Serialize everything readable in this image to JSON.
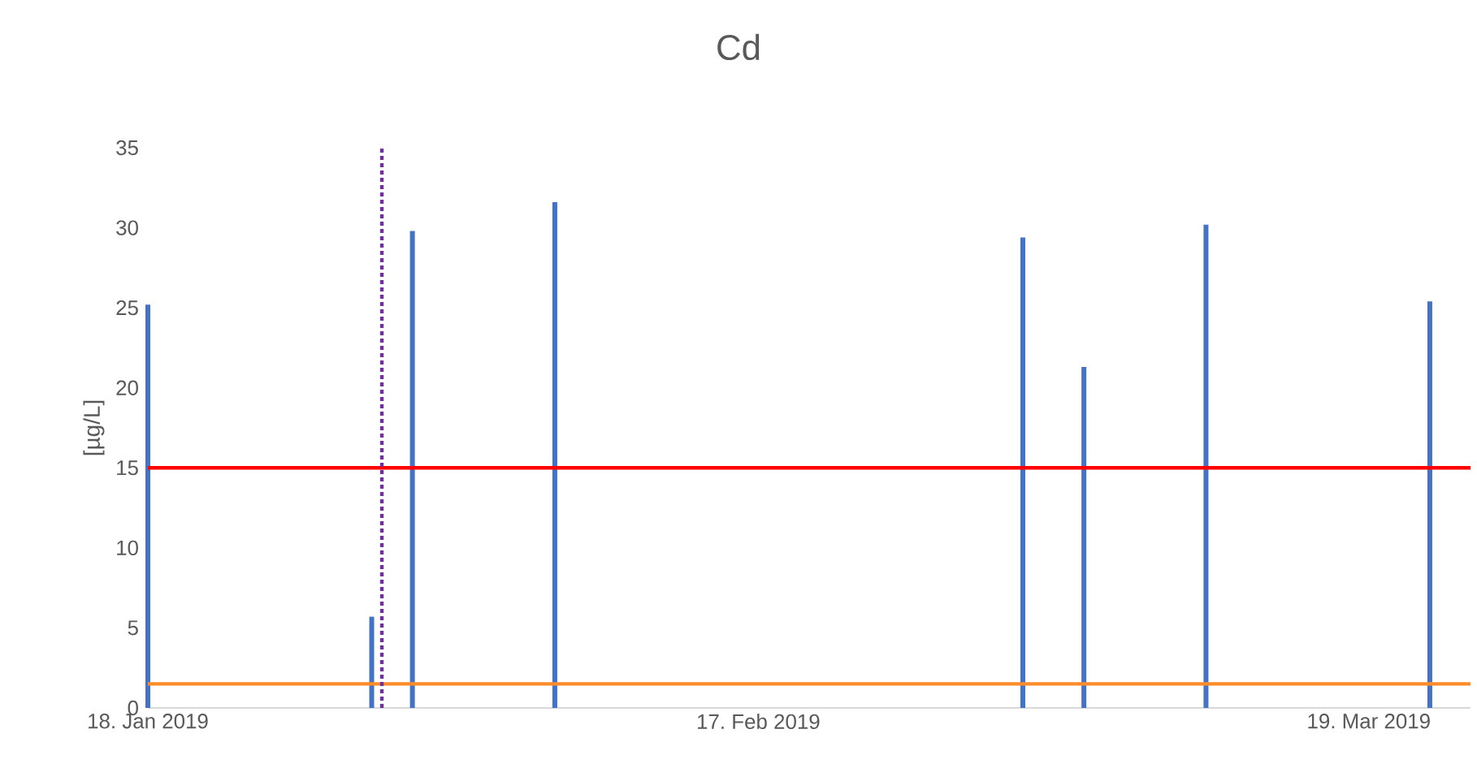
{
  "chart_data": {
    "type": "bar",
    "title": "Cd",
    "ylabel": "[µg/L]",
    "x": [
      "2019-01-18",
      "2019-01-29",
      "2019-01-31",
      "2019-02-07",
      "2019-03-02",
      "2019-03-05",
      "2019-03-11",
      "2019-03-22"
    ],
    "values": [
      25.2,
      5.7,
      29.8,
      31.6,
      29.4,
      21.3,
      30.2,
      25.4
    ],
    "color": "#4472c4",
    "xlim": [
      "2019-01-18",
      "2019-03-24"
    ],
    "xticks": [
      {
        "value": "2019-01-18",
        "label": "18. Jan 2019"
      },
      {
        "value": "2019-02-17",
        "label": "17. Feb 2019"
      },
      {
        "value": "2019-03-19",
        "label": "19. Mar 2019"
      }
    ],
    "ylim": [
      0,
      35
    ],
    "yticks": [
      0,
      5,
      10,
      15,
      20,
      25,
      30,
      35
    ],
    "ref_lines": [
      {
        "axis": "y",
        "value": 15,
        "color": "#ff0000",
        "line_style": "solid"
      },
      {
        "axis": "y",
        "value": 1.5,
        "color": "#ff8c29",
        "line_style": "solid"
      },
      {
        "axis": "x",
        "value": "2019-01-29T12:00",
        "color": "#7030a0",
        "line_style": "dotted"
      }
    ]
  }
}
